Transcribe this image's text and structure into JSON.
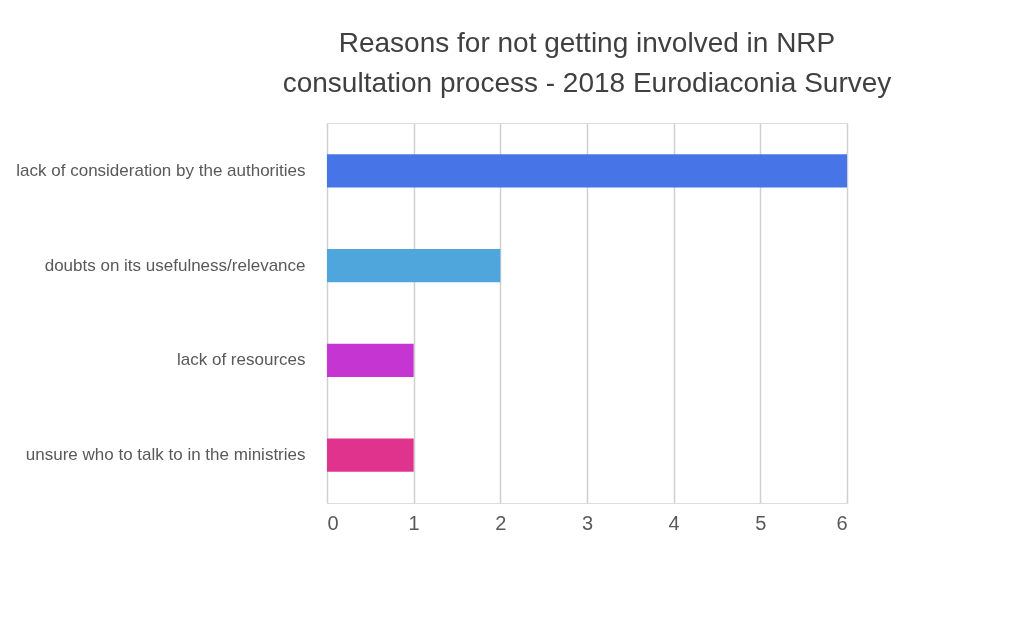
{
  "chart_data": {
    "type": "bar",
    "orientation": "horizontal",
    "title": [
      "Reasons for not getting involved in NRP",
      "consultation process - 2018 Eurodiaconia Survey"
    ],
    "categories": [
      "lack of consideration by the authorities",
      "doubts on its usefulness/relevance",
      "lack of resources",
      "unsure who to talk to in the ministries"
    ],
    "values": [
      6,
      2,
      1,
      1
    ],
    "colors": [
      "#4774e6",
      "#4fa6dc",
      "#c535d1",
      "#e0338e"
    ],
    "xlim": [
      0,
      6
    ],
    "xticks": [
      0,
      1,
      2,
      3,
      4,
      5,
      6
    ],
    "grid": "x"
  }
}
